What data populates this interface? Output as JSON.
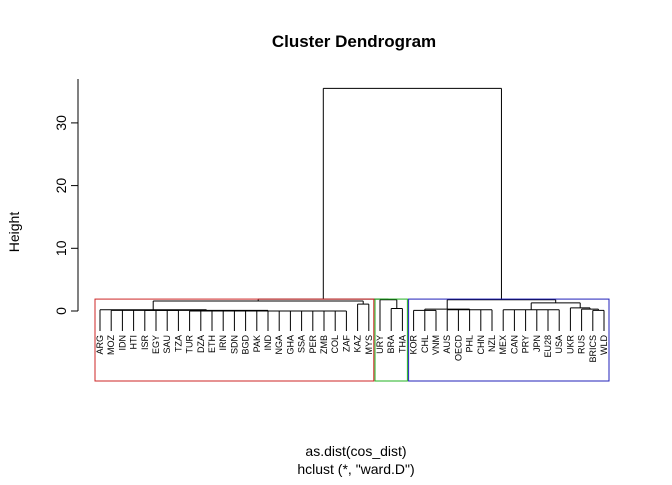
{
  "chart_data": {
    "type": "dendrogram",
    "title": "Cluster Dendrogram",
    "y_label": "Height",
    "x_label": "as.dist(cos_dist)",
    "subtitle": "hclust (*, \"ward.D\")",
    "ylim": [
      0,
      37
    ],
    "yticks": [
      0,
      10,
      20,
      30
    ],
    "rect_height": 1.9,
    "line_color": "#000000",
    "tree": {
      "height": 35.5,
      "children": [
        {
          "height": 1.9,
          "children": [
            {
              "height": 1.6,
              "border": "#cd2626",
              "children": [
                {
                  "height": 0.2,
                  "children": [
                    "ARG",
                    {
                      "height": 0.1,
                      "children": [
                        {
                          "height": 0.1,
                          "children": [
                            "MOZ",
                            "IDN",
                            "HTI",
                            "ISR",
                            "EGY",
                            "SAU",
                            "TZA"
                          ]
                        },
                        {
                          "height": 0.0,
                          "children": [
                            "TUR",
                            "DZA",
                            "ETH",
                            "IRN",
                            "SDN",
                            "BGD",
                            "PAK",
                            "IND",
                            "NGA",
                            "GHA",
                            "SSA",
                            "PER",
                            "ZMB",
                            "COL",
                            "ZAF"
                          ]
                        }
                      ]
                    }
                  ]
                },
                {
                  "height": 1.1,
                  "children": [
                    "KAZ",
                    "MYS"
                  ]
                }
              ]
            },
            {
              "height": 1.8,
              "border": "#22b022",
              "children": [
                "URY",
                {
                  "height": 0.4,
                  "children": [
                    "BRA",
                    "THA"
                  ]
                }
              ]
            }
          ]
        },
        {
          "height": 1.8,
          "border": "#2020b8",
          "children": [
            {
              "height": 0.3,
              "children": [
                {
                  "height": 0.1,
                  "children": [
                    "KOR",
                    "CHL",
                    "VNM"
                  ]
                },
                {
                  "height": 0.2,
                  "children": [
                    "AUS",
                    "OECD",
                    "PHL",
                    "CHN",
                    "NZL"
                  ]
                }
              ]
            },
            {
              "height": 1.3,
              "children": [
                {
                  "height": 0.2,
                  "children": [
                    "MEX",
                    "CAN",
                    "PRY",
                    "JPN",
                    "EU28",
                    "USA"
                  ]
                },
                {
                  "height": 0.5,
                  "children": [
                    "UKR",
                    {
                      "height": 0.3,
                      "children": [
                        "RUS",
                        {
                          "height": 0.1,
                          "children": [
                            "BRICS",
                            "WLD"
                          ]
                        }
                      ]
                    }
                  ]
                }
              ]
            }
          ]
        }
      ]
    }
  }
}
